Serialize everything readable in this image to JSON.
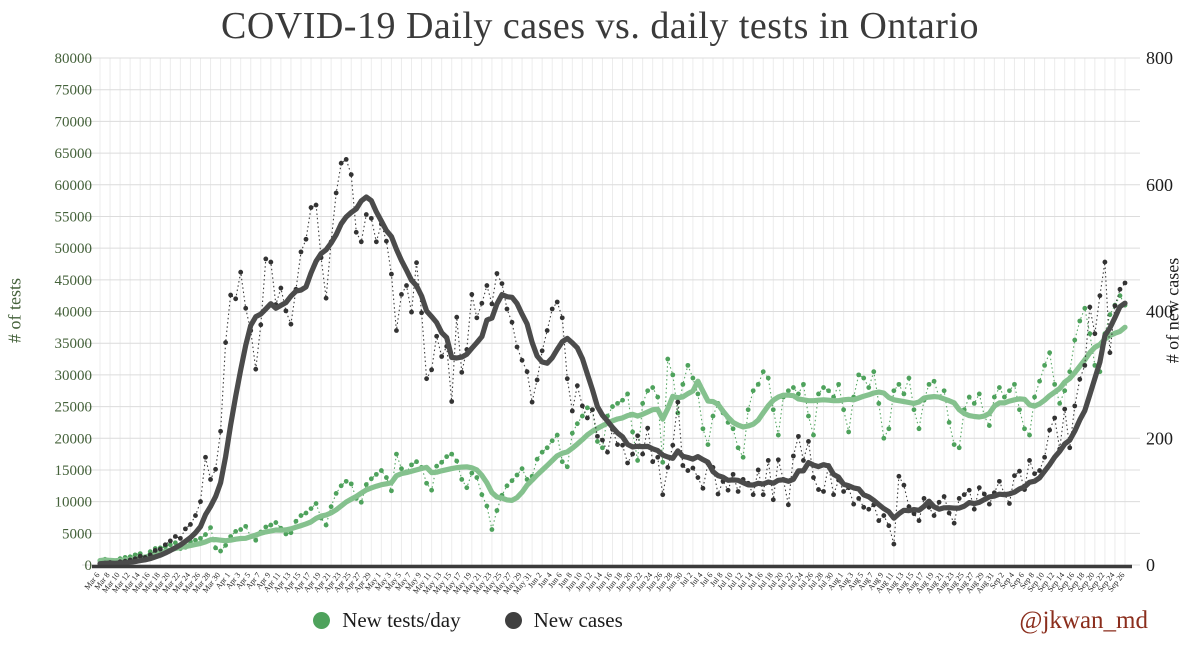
{
  "title": "COVID-19 Daily cases vs. daily tests in Ontario",
  "watermark": "@jkwan_md",
  "legend": [
    {
      "label": "New tests/day",
      "color": "#4ea25c"
    },
    {
      "label": "New cases",
      "color": "#3f3f3f"
    }
  ],
  "chart_data": {
    "type": "line",
    "title": "COVID-19 Daily cases vs. daily tests in Ontario",
    "smoothing": "thick lines are 7-day moving averages of the daily dots",
    "grid": true,
    "legend_position": "bottom-center",
    "x_tick_every": 2,
    "x": [
      "Mar 6",
      "Mar 7",
      "Mar 8",
      "Mar 9",
      "Mar 10",
      "Mar 11",
      "Mar 12",
      "Mar 13",
      "Mar 14",
      "Mar 15",
      "Mar 16",
      "Mar 17",
      "Mar 18",
      "Mar 19",
      "Mar 20",
      "Mar 21",
      "Mar 22",
      "Mar 23",
      "Mar 24",
      "Mar 25",
      "Mar 26",
      "Mar 27",
      "Mar 28",
      "Mar 29",
      "Mar 30",
      "Mar 31",
      "Apr 1",
      "Apr 2",
      "Apr 3",
      "Apr 4",
      "Apr 5",
      "Apr 6",
      "Apr 7",
      "Apr 8",
      "Apr 9",
      "Apr 10",
      "Apr 11",
      "Apr 12",
      "Apr 13",
      "Apr 14",
      "Apr 15",
      "Apr 16",
      "Apr 17",
      "Apr 18",
      "Apr 19",
      "Apr 20",
      "Apr 21",
      "Apr 22",
      "Apr 23",
      "Apr 24",
      "Apr 25",
      "Apr 26",
      "Apr 27",
      "Apr 28",
      "Apr 29",
      "Apr 30",
      "May 1",
      "May 2",
      "May 3",
      "May 4",
      "May 5",
      "May 6",
      "May 7",
      "May 8",
      "May 9",
      "May 10",
      "May 11",
      "May 12",
      "May 13",
      "May 14",
      "May 15",
      "May 16",
      "May 17",
      "May 18",
      "May 19",
      "May 20",
      "May 21",
      "May 22",
      "May 23",
      "May 24",
      "May 25",
      "May 26",
      "May 27",
      "May 28",
      "May 29",
      "May 30",
      "May 31",
      "Jun 1",
      "Jun 2",
      "Jun 3",
      "Jun 4",
      "Jun 5",
      "Jun 6",
      "Jun 7",
      "Jun 8",
      "Jun 9",
      "Jun 10",
      "Jun 11",
      "Jun 12",
      "Jun 13",
      "Jun 14",
      "Jun 15",
      "Jun 16",
      "Jun 17",
      "Jun 18",
      "Jun 19",
      "Jun 20",
      "Jun 21",
      "Jun 22",
      "Jun 23",
      "Jun 24",
      "Jun 25",
      "Jun 26",
      "Jun 27",
      "Jun 28",
      "Jun 29",
      "Jun 30",
      "Jul 1",
      "Jul 2",
      "Jul 3",
      "Jul 4",
      "Jul 5",
      "Jul 6",
      "Jul 7",
      "Jul 8",
      "Jul 9",
      "Jul 10",
      "Jul 11",
      "Jul 12",
      "Jul 13",
      "Jul 14",
      "Jul 15",
      "Jul 16",
      "Jul 17",
      "Jul 18",
      "Jul 19",
      "Jul 20",
      "Jul 21",
      "Jul 22",
      "Jul 23",
      "Jul 24",
      "Jul 25",
      "Jul 26",
      "Jul 27",
      "Jul 28",
      "Jul 29",
      "Jul 30",
      "Jul 31",
      "Aug 1",
      "Aug 2",
      "Aug 3",
      "Aug 4",
      "Aug 5",
      "Aug 6",
      "Aug 7",
      "Aug 8",
      "Aug 9",
      "Aug 10",
      "Aug 11",
      "Aug 12",
      "Aug 13",
      "Aug 14",
      "Aug 15",
      "Aug 16",
      "Aug 17",
      "Aug 18",
      "Aug 19",
      "Aug 20",
      "Aug 21",
      "Aug 22",
      "Aug 23",
      "Aug 24",
      "Aug 25",
      "Aug 26",
      "Aug 27",
      "Aug 28",
      "Aug 29",
      "Aug 30",
      "Aug 31",
      "Sep 1",
      "Sep 2",
      "Sep 3",
      "Sep 4",
      "Sep 5",
      "Sep 6",
      "Sep 7",
      "Sep 8",
      "Sep 9",
      "Sep 10",
      "Sep 11",
      "Sep 12",
      "Sep 13",
      "Sep 14",
      "Sep 15",
      "Sep 16",
      "Sep 17",
      "Sep 18",
      "Sep 19",
      "Sep 20",
      "Sep 21",
      "Sep 22",
      "Sep 23",
      "Sep 24",
      "Sep 25",
      "Sep 26"
    ],
    "series": [
      {
        "name": "New tests/day",
        "axis": "left",
        "point_color": "#4ea25c",
        "line_color": "#85c18e",
        "values": [
          700,
          900,
          600,
          500,
          1000,
          1200,
          1300,
          1600,
          1800,
          1300,
          2100,
          2600,
          2700,
          2900,
          3200,
          3500,
          2600,
          2800,
          3700,
          3900,
          4200,
          4800,
          5900,
          2700,
          2200,
          3100,
          4500,
          5300,
          5600,
          6100,
          4500,
          3900,
          5200,
          6000,
          6300,
          6700,
          5800,
          4900,
          5100,
          6900,
          7800,
          8200,
          8900,
          9700,
          7400,
          6300,
          9200,
          11300,
          12500,
          13200,
          12800,
          10500,
          9900,
          12700,
          13600,
          14300,
          14900,
          13800,
          11700,
          17500,
          15200,
          14700,
          15800,
          16300,
          15400,
          12900,
          11800,
          15600,
          16200,
          17100,
          17500,
          16400,
          13500,
          12200,
          14500,
          13800,
          11100,
          9300,
          5600,
          8600,
          11000,
          12500,
          13300,
          14200,
          15200,
          13500,
          14000,
          16700,
          17800,
          18500,
          19600,
          20500,
          16300,
          15500,
          20800,
          22300,
          23500,
          24800,
          24500,
          19500,
          18500,
          23500,
          25000,
          25500,
          26000,
          27000,
          21000,
          16500,
          25500,
          27500,
          28000,
          26500,
          16200,
          32500,
          30000,
          24000,
          28500,
          31500,
          29500,
          27000,
          21500,
          19000,
          23500,
          25500,
          24000,
          22500,
          21500,
          18500,
          17000,
          24500,
          27500,
          28500,
          30500,
          29500,
          24500,
          20500,
          26500,
          27500,
          28000,
          27000,
          28500,
          23500,
          20500,
          27000,
          28000,
          27500,
          26500,
          28500,
          24500,
          21000,
          26500,
          30000,
          29500,
          28000,
          30500,
          25500,
          20000,
          21500,
          27500,
          28500,
          27000,
          29500,
          24500,
          21500,
          26000,
          28500,
          29000,
          26500,
          27500,
          22500,
          19000,
          18500,
          24500,
          26500,
          25500,
          27000,
          23500,
          22000,
          26500,
          28000,
          26500,
          27500,
          28500,
          24500,
          21500,
          20500,
          26500,
          29000,
          31500,
          33500,
          28500,
          25500,
          27500,
          30500,
          35500,
          38500,
          40500,
          36500,
          31500,
          30500,
          36500,
          39500,
          41000,
          42500,
          41000
        ]
      },
      {
        "name": "New cases",
        "axis": "right",
        "point_color": "#333333",
        "line_color": "#4b4b4b",
        "values": [
          2,
          3,
          4,
          2,
          5,
          6,
          8,
          10,
          14,
          12,
          16,
          23,
          25,
          32,
          38,
          45,
          42,
          57,
          64,
          78,
          100,
          170,
          135,
          151,
          211,
          351,
          426,
          420,
          462,
          405,
          370,
          309,
          379,
          483,
          478,
          411,
          437,
          401,
          380,
          435,
          494,
          514,
          564,
          568,
          485,
          421,
          510,
          587,
          634,
          640,
          616,
          525,
          510,
          553,
          547,
          510,
          538,
          511,
          459,
          370,
          427,
          441,
          399,
          477,
          398,
          294,
          308,
          361,
          329,
          345,
          258,
          391,
          304,
          340,
          427,
          390,
          413,
          441,
          412,
          460,
          444,
          404,
          383,
          344,
          323,
          305,
          257,
          292,
          338,
          370,
          404,
          415,
          390,
          294,
          243,
          283,
          251,
          232,
          245,
          203,
          197,
          178,
          214,
          190,
          189,
          161,
          175,
          204,
          175,
          216,
          163,
          170,
          111,
          154,
          189,
          257,
          157,
          149,
          153,
          138,
          121,
          160,
          154,
          112,
          132,
          118,
          143,
          116,
          135,
          129,
          111,
          150,
          111,
          165,
          103,
          166,
          135,
          95,
          172,
          203,
          165,
          195,
          138,
          119,
          116,
          157,
          111,
          134,
          116,
          122,
          96,
          105,
          91,
          88,
          95,
          70,
          78,
          62,
          33,
          140,
          126,
          92,
          81,
          70,
          105,
          91,
          78,
          99,
          108,
          82,
          66,
          105,
          111,
          118,
          88,
          122,
          112,
          96,
          114,
          132,
          112,
          97,
          141,
          148,
          119,
          165,
          144,
          149,
          170,
          213,
          232,
          183,
          246,
          185,
          251,
          293,
          315,
          407,
          365,
          425,
          478,
          335,
          409,
          435,
          445
        ]
      }
    ],
    "left_axis": {
      "label": "# of tests",
      "min": 0,
      "max": 80000,
      "step": 5000,
      "color": "#44613a"
    },
    "right_axis": {
      "label": "# of new cases",
      "min": 0,
      "max": 800,
      "ticks": [
        0,
        200,
        400,
        600,
        800
      ],
      "color": "#1d1d1d"
    }
  }
}
